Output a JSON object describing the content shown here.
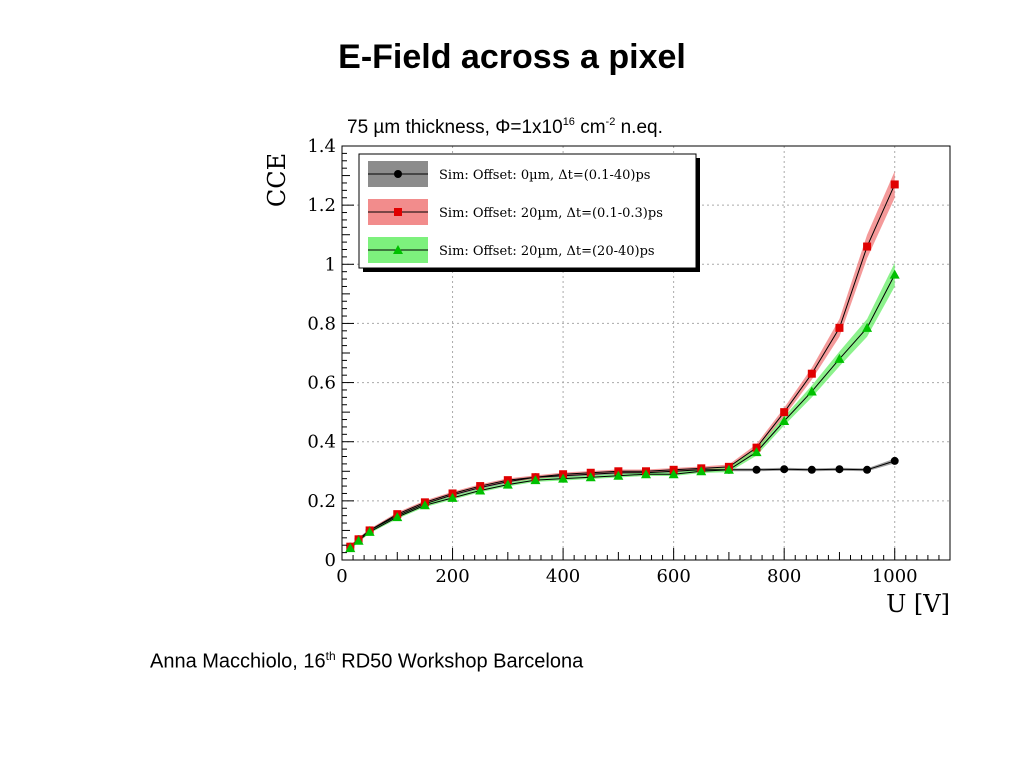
{
  "slide": {
    "title": "E-Field across a pixel",
    "footer": {
      "author": "Anna Macchiolo, 16",
      "sup": "th",
      "event": " RD50 Workshop Barcelona"
    }
  },
  "chart_data": {
    "type": "line",
    "title_parts": {
      "a": "75 µm thickness, Φ=1x10",
      "sup1": "16",
      "b": " cm",
      "sup2": "-2",
      "c": " n.eq."
    },
    "xlabel": "U [V]",
    "ylabel": "CCE",
    "xlim": [
      0,
      1100
    ],
    "ylim": [
      0,
      1.4
    ],
    "xticks": [
      "0",
      "200",
      "400",
      "600",
      "800",
      "1000"
    ],
    "xtick_values": [
      0,
      200,
      400,
      600,
      800,
      1000
    ],
    "yticks": [
      "0",
      "0.2",
      "0.4",
      "0.6",
      "0.8",
      "1",
      "1.2",
      "1.4"
    ],
    "ytick_values": [
      0,
      0.2,
      0.4,
      0.6,
      0.8,
      1.0,
      1.2,
      1.4
    ],
    "grid": true,
    "legend_position": "top-left",
    "series": [
      {
        "name": "Sim: Offset: 0µm, Δt=(0.1-40)ps",
        "color": "#000000",
        "band_color": "#808080",
        "marker": "circle",
        "x": [
          15,
          30,
          50,
          100,
          150,
          200,
          250,
          300,
          350,
          400,
          450,
          500,
          550,
          600,
          650,
          700,
          750,
          800,
          850,
          900,
          950,
          1000
        ],
        "y": [
          0.045,
          0.07,
          0.1,
          0.15,
          0.19,
          0.22,
          0.245,
          0.265,
          0.28,
          0.285,
          0.29,
          0.295,
          0.295,
          0.3,
          0.305,
          0.305,
          0.305,
          0.307,
          0.305,
          0.307,
          0.305,
          0.335
        ],
        "band": [
          0.005,
          0.005,
          0.005,
          0.005,
          0.005,
          0.005,
          0.005,
          0.005,
          0.005,
          0.005,
          0.005,
          0.005,
          0.005,
          0.005,
          0.005,
          0.005,
          0.005,
          0.005,
          0.005,
          0.005,
          0.005,
          0.008
        ]
      },
      {
        "name": "Sim: Offset: 20µm, Δt=(0.1-0.3)ps",
        "color": "#e00000",
        "band_color": "#f07878",
        "marker": "square",
        "x": [
          15,
          30,
          50,
          100,
          150,
          200,
          250,
          300,
          350,
          400,
          450,
          500,
          550,
          600,
          650,
          700,
          750,
          800,
          850,
          900,
          950,
          1000
        ],
        "y": [
          0.045,
          0.07,
          0.1,
          0.155,
          0.195,
          0.225,
          0.25,
          0.27,
          0.28,
          0.29,
          0.295,
          0.3,
          0.3,
          0.305,
          0.31,
          0.315,
          0.38,
          0.5,
          0.63,
          0.785,
          1.06,
          1.27
        ],
        "band": [
          0.005,
          0.005,
          0.005,
          0.006,
          0.006,
          0.006,
          0.006,
          0.006,
          0.006,
          0.006,
          0.006,
          0.006,
          0.006,
          0.006,
          0.006,
          0.008,
          0.012,
          0.015,
          0.02,
          0.03,
          0.04,
          0.045
        ]
      },
      {
        "name": "Sim: Offset: 20µm, Δt=(20-40)ps",
        "color": "#00c000",
        "band_color": "#66ee66",
        "marker": "triangle",
        "x": [
          15,
          30,
          50,
          100,
          150,
          200,
          250,
          300,
          350,
          400,
          450,
          500,
          550,
          600,
          650,
          700,
          750,
          800,
          850,
          900,
          950,
          1000
        ],
        "y": [
          0.04,
          0.065,
          0.095,
          0.145,
          0.185,
          0.21,
          0.235,
          0.255,
          0.27,
          0.275,
          0.28,
          0.285,
          0.29,
          0.29,
          0.3,
          0.305,
          0.365,
          0.47,
          0.57,
          0.68,
          0.785,
          0.965
        ],
        "band": [
          0.005,
          0.005,
          0.005,
          0.006,
          0.006,
          0.006,
          0.006,
          0.006,
          0.006,
          0.006,
          0.006,
          0.006,
          0.006,
          0.006,
          0.006,
          0.008,
          0.012,
          0.015,
          0.02,
          0.025,
          0.03,
          0.04
        ]
      }
    ]
  }
}
